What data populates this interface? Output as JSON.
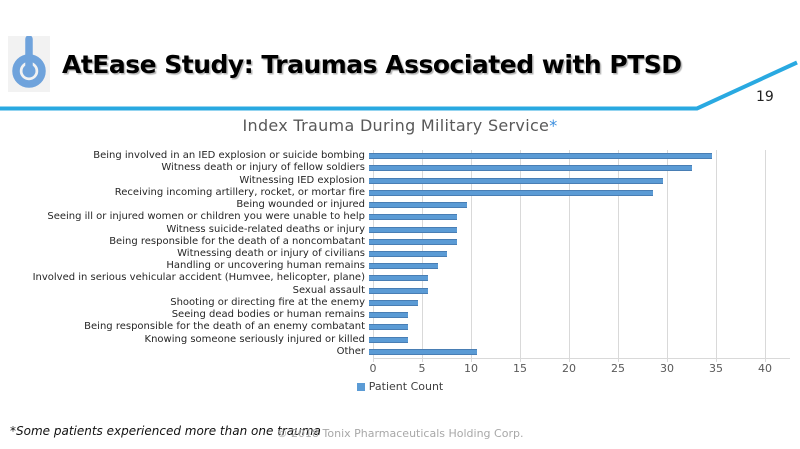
{
  "header": {
    "title": "AtEase Study: Traumas Associated with PTSD",
    "page_number": "19",
    "accent_color": "#29a9e1",
    "logo": {
      "name": "power-icon",
      "icon_color": "#6fa3dc",
      "background_color": "#f2f2f2"
    }
  },
  "chart_data": {
    "type": "bar",
    "orientation": "horizontal",
    "title": "Index Trauma During Military Service",
    "title_asterisk": "*",
    "asterisk_color": "#3b8ede",
    "categories": [
      "Being involved in an IED explosion or suicide bombing",
      "Witness death or injury of fellow soldiers",
      "Witnessing IED explosion",
      "Receiving incoming artillery, rocket, or mortar fire",
      "Being wounded or injured",
      "Seeing ill or injured women or children you were unable to help",
      "Witness suicide-related deaths or injury",
      "Being responsible for the death of a noncombatant",
      "Witnessing death or injury of civilians",
      "Handling or uncovering human remains",
      "Involved in serious vehicular accident (Humvee, helicopter, plane)",
      "Sexual assault",
      "Shooting or directing fire at the enemy",
      "Seeing dead bodies or human remains",
      "Being responsible for the death of an enemy combatant",
      "Knowing someone seriously injured or killed",
      "Other"
    ],
    "values": [
      35,
      33,
      30,
      29,
      10,
      9,
      9,
      9,
      8,
      7,
      6,
      6,
      5,
      4,
      4,
      4,
      11
    ],
    "series_name": "Patient Count",
    "xlim": [
      0,
      40
    ],
    "xticks": [
      0,
      5,
      10,
      15,
      20,
      25,
      30,
      35,
      40
    ],
    "grid": "vertical",
    "grid_color": "#d9d9d9",
    "bar_color": "#5b9bd5",
    "legend_position": "bottom"
  },
  "footer": {
    "note": "*Some patients experienced more than one trauma",
    "copyright": "© 2018 Tonix Pharmaceuticals Holding Corp."
  }
}
